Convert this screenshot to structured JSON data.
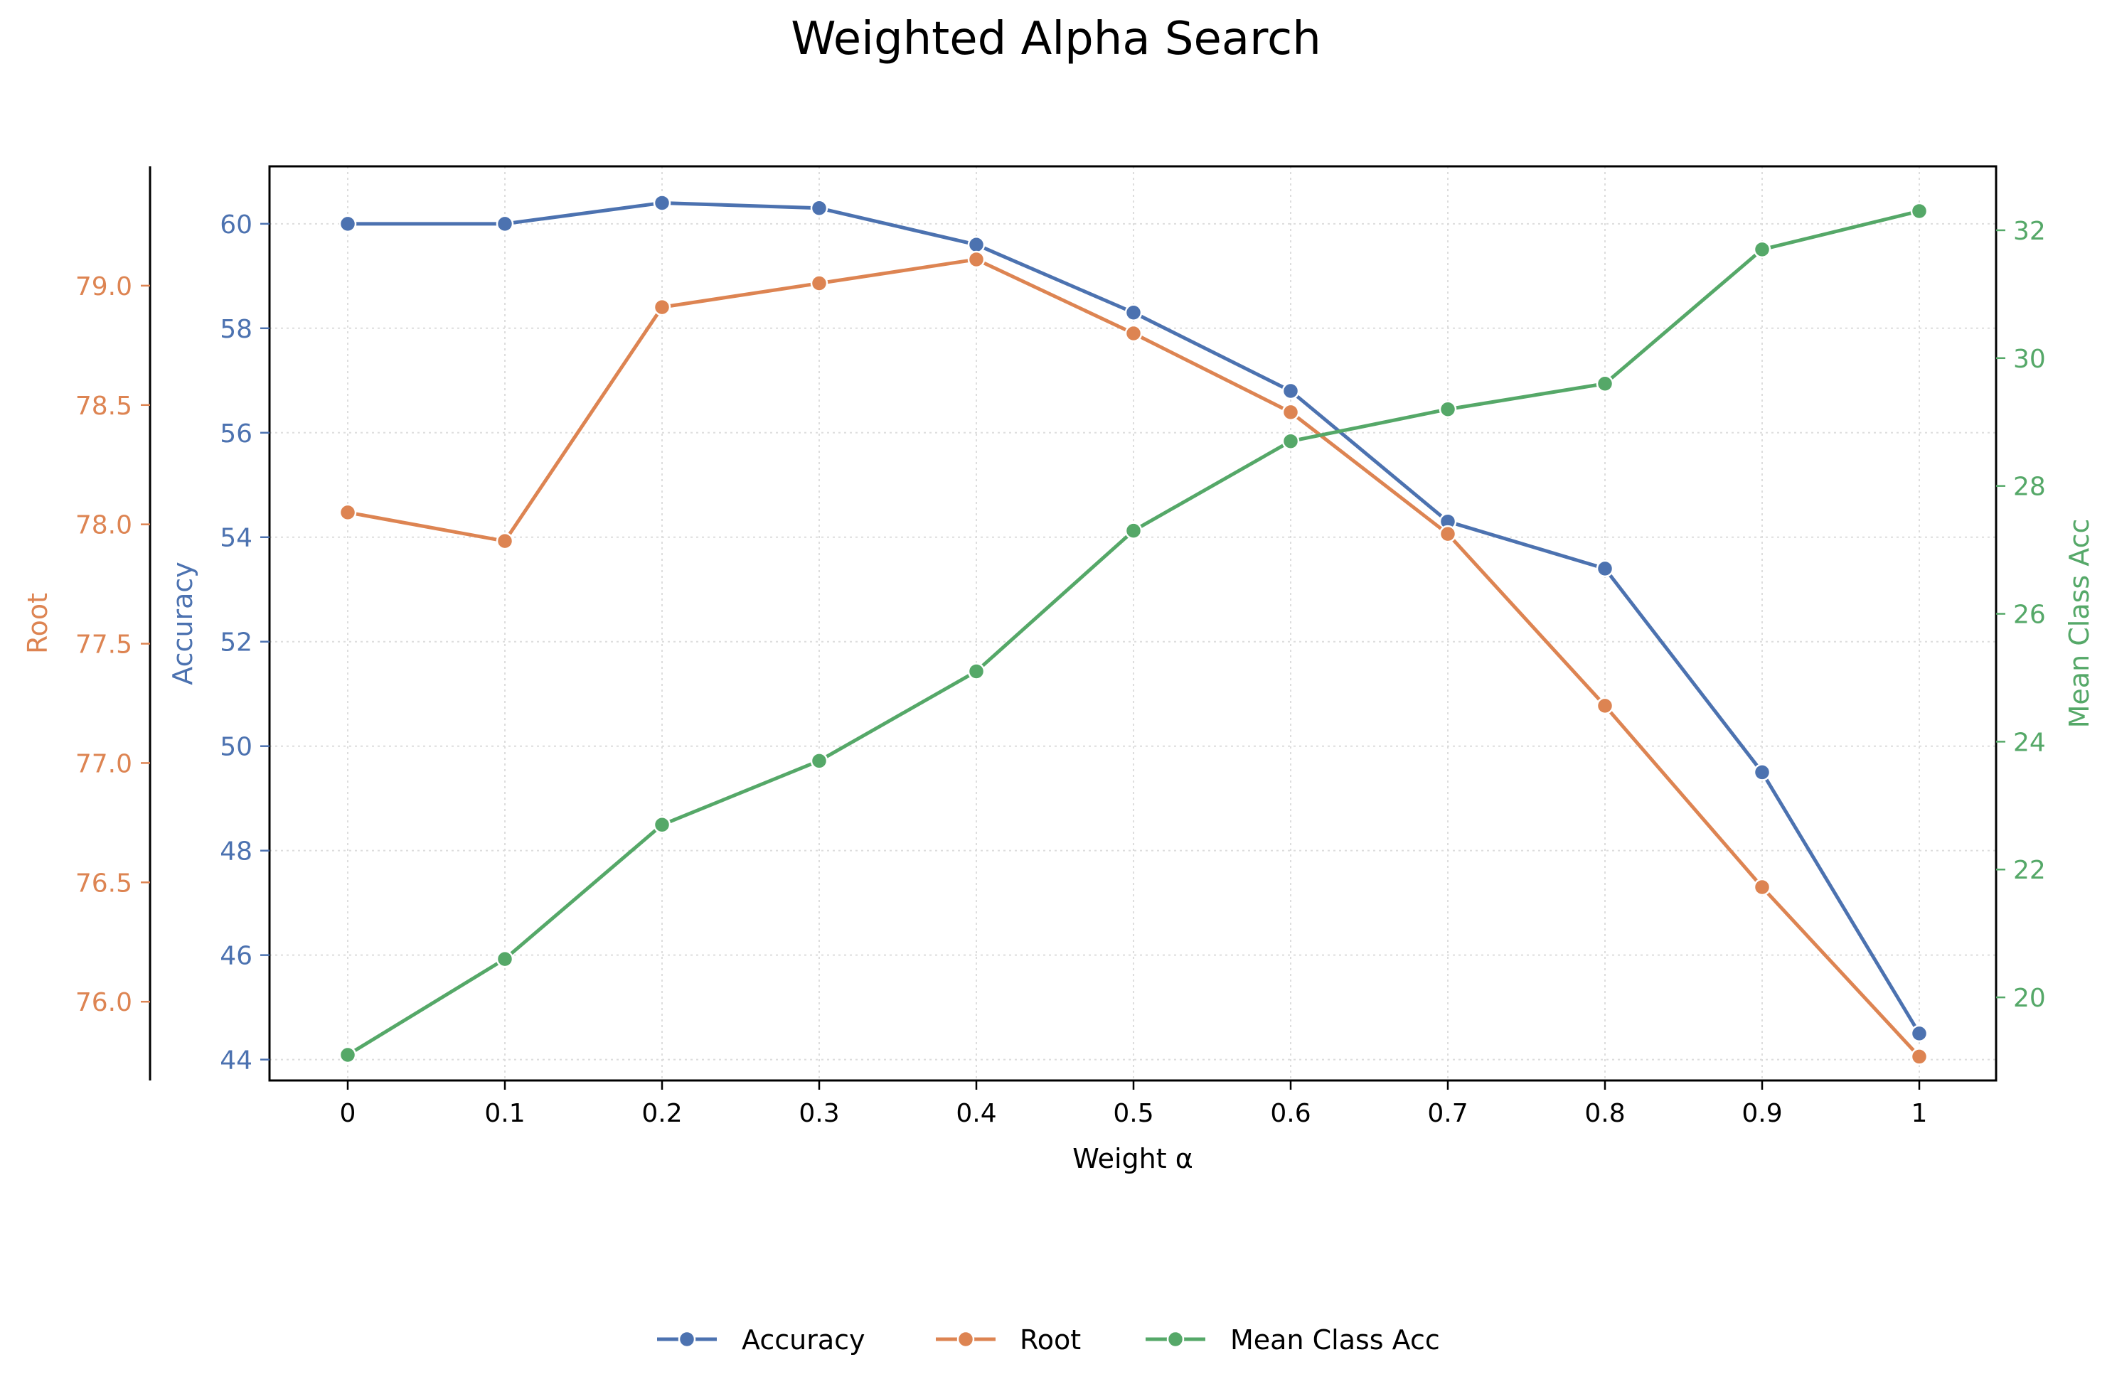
{
  "chart_data": {
    "type": "line",
    "title": "Weighted Alpha Search",
    "xlabel": "Weight α",
    "x": [
      "0",
      "0.1",
      "0.2",
      "0.3",
      "0.4",
      "0.5",
      "0.6",
      "0.7",
      "0.8",
      "0.9",
      "1"
    ],
    "grid": true,
    "legend_position": "bottom-center",
    "series": [
      {
        "name": "Accuracy",
        "axis": "left-inner",
        "color": "#4c72b0",
        "values": [
          60.0,
          60.0,
          60.4,
          60.3,
          59.6,
          58.3,
          56.8,
          54.3,
          53.4,
          49.5,
          44.5
        ]
      },
      {
        "name": "Root",
        "axis": "left-outer",
        "color": "#dd8452",
        "values": [
          78.05,
          77.93,
          78.91,
          79.01,
          79.11,
          78.8,
          78.47,
          77.96,
          77.24,
          76.48,
          75.77
        ]
      },
      {
        "name": "Mean Class Acc",
        "axis": "right",
        "color": "#55a868",
        "values": [
          19.1,
          20.6,
          22.7,
          23.7,
          25.1,
          27.3,
          28.7,
          29.2,
          29.6,
          31.7,
          32.3
        ]
      }
    ],
    "axes": {
      "accuracy": {
        "label": "Accuracy",
        "ticks": [
          "44",
          "46",
          "48",
          "50",
          "52",
          "54",
          "56",
          "58",
          "60"
        ],
        "ylim": [
          43.6,
          61.1
        ]
      },
      "root": {
        "label": "Root",
        "ticks": [
          "76.0",
          "76.5",
          "77.0",
          "77.5",
          "78.0",
          "78.5",
          "79.0"
        ],
        "ylim": [
          75.67,
          79.5
        ]
      },
      "mean_class_acc": {
        "label": "Mean Class Acc",
        "ticks": [
          "20",
          "22",
          "24",
          "26",
          "28",
          "30",
          "32"
        ],
        "ylim": [
          18.7,
          33.0
        ]
      }
    }
  }
}
